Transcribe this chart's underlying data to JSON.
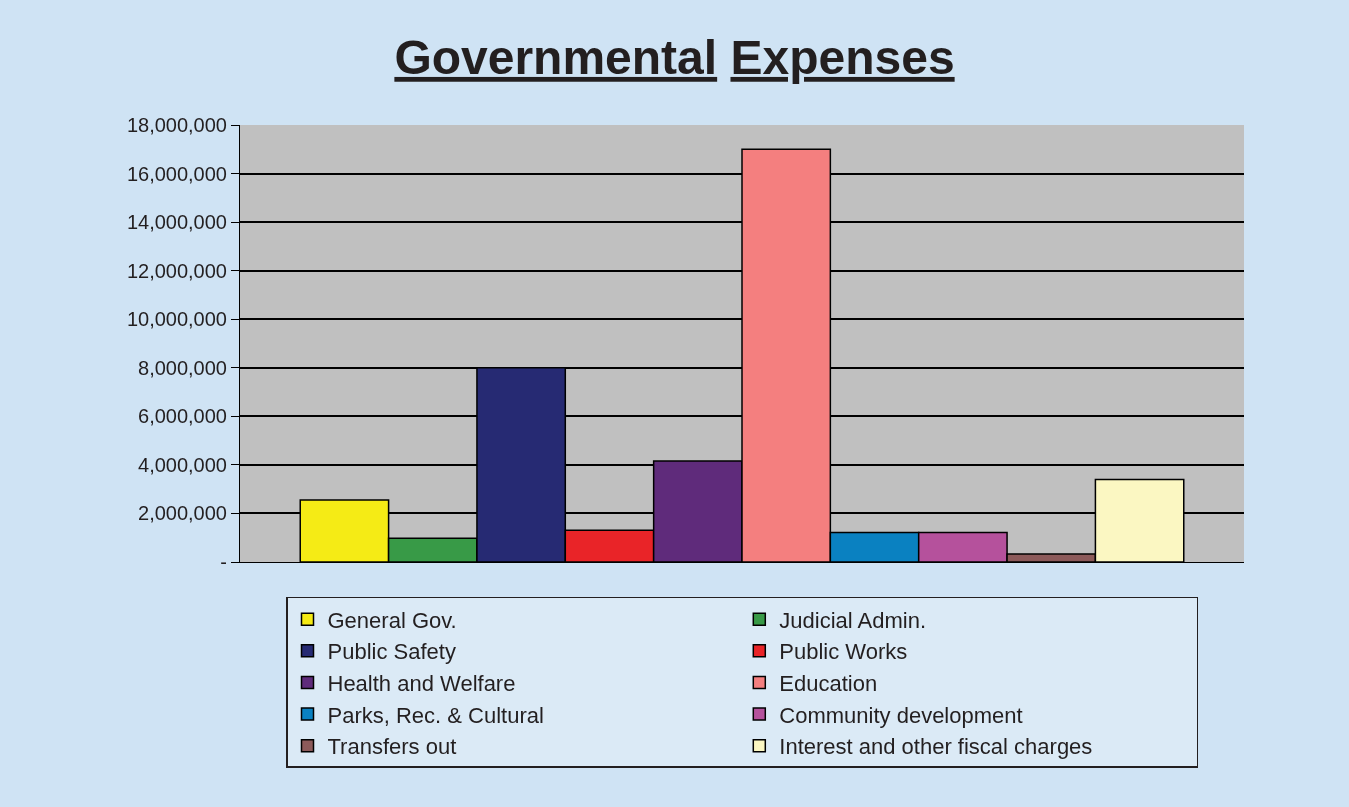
{
  "chart_data": {
    "type": "bar",
    "title": "Governmental Expenses",
    "categories": [
      null
    ],
    "series": [
      {
        "name": "General Gov.",
        "color": "#f5eb15",
        "values": [
          2550000
        ]
      },
      {
        "name": "Judicial Admin.",
        "color": "#389a47",
        "values": [
          980000
        ]
      },
      {
        "name": "Public Safety",
        "color": "#262a73",
        "values": [
          8000000
        ]
      },
      {
        "name": "Public Works",
        "color": "#e92428",
        "values": [
          1310000
        ]
      },
      {
        "name": "Health and Welfare",
        "color": "#5f2b7b",
        "values": [
          4160000
        ]
      },
      {
        "name": "Education",
        "color": "#f47f7f",
        "values": [
          17000000
        ]
      },
      {
        "name": "Parks, Rec. & Cultural",
        "color": "#0a81c1",
        "values": [
          1220000
        ]
      },
      {
        "name": "Community development",
        "color": "#b5519c",
        "values": [
          1220000
        ]
      },
      {
        "name": "Transfers out",
        "color": "#8c5a5a",
        "values": [
          330000
        ]
      },
      {
        "name": "Interest and other fiscal charges",
        "color": "#fbf7c2",
        "values": [
          3400000
        ]
      }
    ],
    "ylim": [
      0,
      18000000
    ],
    "yticks": [
      {
        "value": 0,
        "label": "-"
      },
      {
        "value": 2000000,
        "label": "2,000,000"
      },
      {
        "value": 4000000,
        "label": "4,000,000"
      },
      {
        "value": 6000000,
        "label": "6,000,000"
      },
      {
        "value": 8000000,
        "label": "8,000,000"
      },
      {
        "value": 10000000,
        "label": "10,000,000"
      },
      {
        "value": 12000000,
        "label": "12,000,000"
      },
      {
        "value": 14000000,
        "label": "14,000,000"
      },
      {
        "value": 16000000,
        "label": "16,000,000"
      },
      {
        "value": 18000000,
        "label": "18,000,000"
      }
    ],
    "grid": "y",
    "legend": "bottom"
  }
}
